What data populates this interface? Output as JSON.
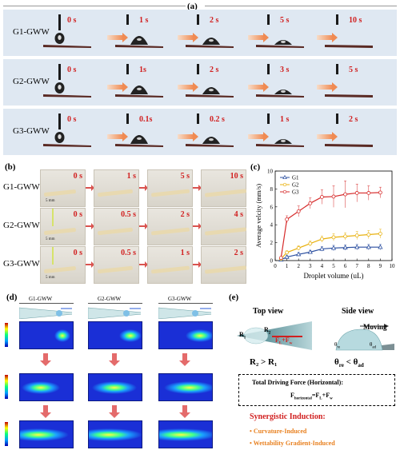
{
  "panels": {
    "a_label": "(a)",
    "b_label": "(b)",
    "c_label": "(c)",
    "d_label": "(d)",
    "e_label": "(e)"
  },
  "panel_a": {
    "rows": [
      {
        "label": "G1-GWW",
        "times": [
          "0 s",
          "1 s",
          "2 s",
          "5 s",
          "10 s"
        ]
      },
      {
        "label": "G2-GWW",
        "times": [
          "0 s",
          "1s",
          "2 s",
          "3 s",
          "5 s"
        ]
      },
      {
        "label": "G3-GWW",
        "times": [
          "0 s",
          "0.1s",
          "0.2 s",
          "1 s",
          "2 s"
        ]
      }
    ],
    "band_color": "#dfe8f2"
  },
  "panel_b": {
    "rows": [
      {
        "label": "G1-GWW",
        "times": [
          "0 s",
          "1 s",
          "5 s",
          "10 s"
        ]
      },
      {
        "label": "G2-GWW",
        "times": [
          "0 s",
          "0.5 s",
          "2 s",
          "4 s"
        ]
      },
      {
        "label": "G3-GWW",
        "times": [
          "0 s",
          "0.5 s",
          "1 s",
          "2 s"
        ]
      }
    ],
    "scale_text": "5 mm"
  },
  "chart_data": {
    "type": "line",
    "title": "",
    "xlabel": "Droplet volume (uL)",
    "ylabel": "Average velcity (mm/s)",
    "xlim": [
      0,
      10
    ],
    "ylim": [
      0,
      10
    ],
    "xticks": [
      0,
      1,
      2,
      3,
      4,
      5,
      6,
      7,
      8,
      9,
      10
    ],
    "yticks": [
      0,
      2,
      4,
      6,
      8,
      10
    ],
    "x": [
      0.5,
      1,
      2,
      3,
      4,
      5,
      6,
      7,
      8,
      9
    ],
    "legend_position": "top-left",
    "series": [
      {
        "name": "G1",
        "color": "#2b4fa0",
        "marker": "triangle",
        "values": [
          0.1,
          0.4,
          0.7,
          0.95,
          1.3,
          1.4,
          1.45,
          1.5,
          1.5,
          1.5
        ],
        "errors": [
          0.05,
          0.15,
          0.2,
          0.2,
          0.25,
          0.3,
          0.3,
          0.3,
          0.3,
          0.3
        ]
      },
      {
        "name": "G2",
        "color": "#e8b10e",
        "marker": "circle",
        "values": [
          0.2,
          0.9,
          1.4,
          1.9,
          2.4,
          2.6,
          2.7,
          2.8,
          2.9,
          3.0
        ],
        "errors": [
          0.05,
          0.2,
          0.25,
          0.3,
          0.35,
          0.4,
          0.4,
          0.45,
          0.45,
          0.5
        ]
      },
      {
        "name": "G3",
        "color": "#d62b2b",
        "marker": "circle",
        "values": [
          0.3,
          4.6,
          5.5,
          6.4,
          7.1,
          7.15,
          7.4,
          7.55,
          7.55,
          7.6
        ],
        "errors": [
          0.1,
          0.4,
          0.6,
          0.6,
          0.8,
          1.2,
          1.5,
          1.0,
          0.8,
          0.6
        ]
      }
    ]
  },
  "panel_d": {
    "columns": [
      "G1-GWW",
      "G2-GWW",
      "G3-GWW"
    ],
    "colorbar_ticks": [
      "1.0",
      "0.8",
      "0.6",
      "0.4",
      "0.2",
      "0.0"
    ]
  },
  "panel_e": {
    "top_view": "Top view",
    "side_view": "Side view",
    "r1": "R",
    "r1_sub": "1",
    "r2": "R",
    "r2_sub": "2",
    "force": "F",
    "force_sub_l": "L",
    "force_plus": "+F",
    "force_sub_w": "w",
    "moving": "Moving",
    "theta_re": "θ",
    "theta_re_sub": "re",
    "theta_ad": "θ",
    "theta_ad_sub": "ad",
    "radius_relation": "R₂ > R₁",
    "angle_relation_a": "θ",
    "angle_relation_a_sub": "re",
    "angle_relation_mid": " < θ",
    "angle_relation_b_sub": "ad",
    "box_title": "Total Driving Force (Horizontal):",
    "box_formula_f": "F",
    "box_formula_sub": "horizontal",
    "box_formula_rest": "=F",
    "box_formula_l": "L",
    "box_formula_plus": "+F",
    "box_formula_w": "w",
    "synergy_title": "Synergistic Induction:",
    "bullet_1": "Curvature-Induced",
    "bullet_2": "Wettability Gradient-Induced",
    "orange": "#e8801f",
    "red": "#d11f1f"
  }
}
